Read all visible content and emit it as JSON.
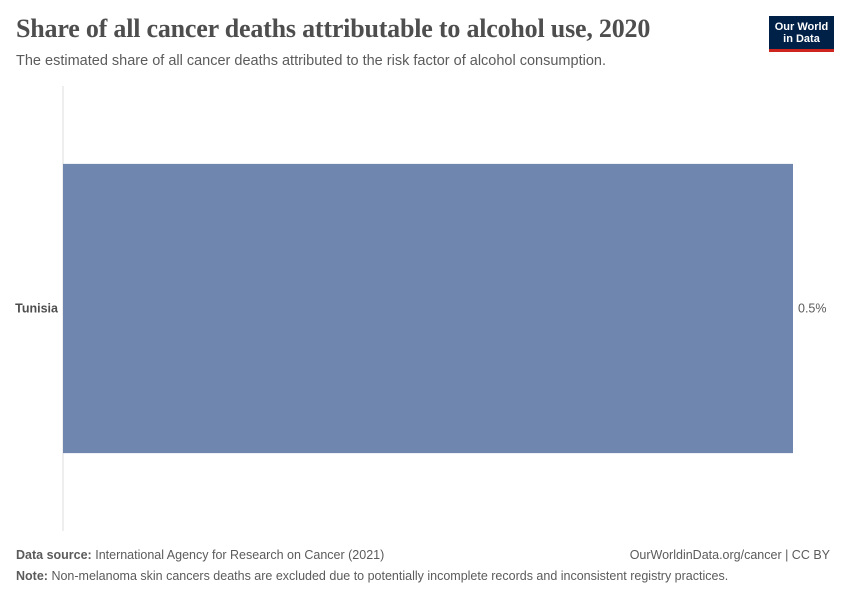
{
  "header": {
    "title": "Share of all cancer deaths attributable to alcohol use, 2020",
    "subtitle": "The estimated share of all cancer deaths attributed to the risk factor of alcohol consumption."
  },
  "logo": {
    "text": "Our World\nin Data",
    "bg_color": "#002147",
    "accent_color": "#ce261e"
  },
  "chart_data": {
    "type": "bar",
    "orientation": "horizontal",
    "categories": [
      "Tunisia"
    ],
    "values": [
      0.5
    ],
    "value_labels": [
      "0.5%"
    ],
    "unit": "%",
    "bar_color": "#6f86ae",
    "xlim": [
      0,
      0.5
    ],
    "grid": false
  },
  "footer": {
    "source_label": "Data source:",
    "source_text": "International Agency for Research on Cancer (2021)",
    "credit": "OurWorldinData.org/cancer | CC BY",
    "note_label": "Note:",
    "note_text": "Non-melanoma skin cancers deaths are excluded due to potentially incomplete records and inconsistent registry practices."
  }
}
